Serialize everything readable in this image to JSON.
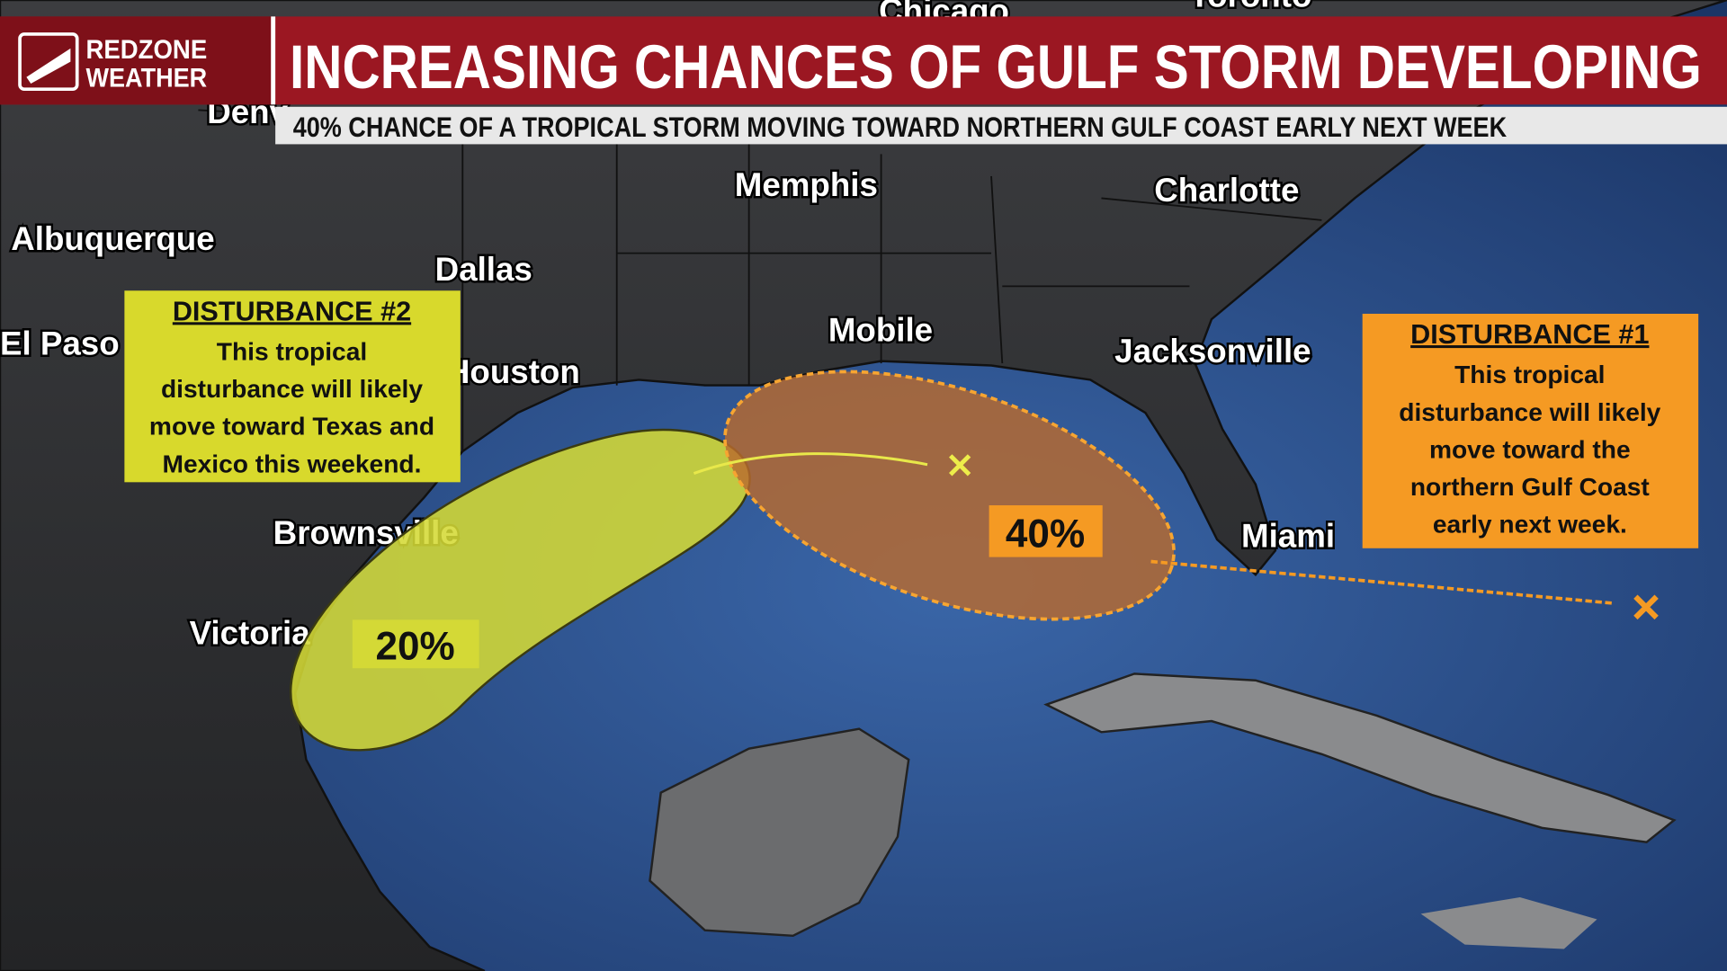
{
  "header": {
    "brand": [
      "REDZONE",
      "WEATHER"
    ],
    "title": "INCREASING CHANCES OF GULF STORM DEVELOPING",
    "subtitle": "40% CHANCE OF A TROPICAL STORM MOVING TOWARD NORTHERN GULF COAST EARLY NEXT WEEK"
  },
  "cities": [
    "Chicago",
    "Toronto",
    "Denv",
    "Memphis",
    "Charlotte",
    "Albuquerque",
    "Dallas",
    "El  Paso",
    "Houston",
    "Mobile",
    "Jacksonville",
    "Brownsville",
    "Miami",
    "Victoria"
  ],
  "disturbances": [
    {
      "title": "DISTURBANCE #1",
      "text": [
        "This tropical",
        "disturbance will likely",
        "move toward the",
        "northern Gulf Coast",
        "early next week."
      ],
      "chance": "40%"
    },
    {
      "title": "DISTURBANCE #2",
      "text": [
        "This tropical",
        "disturbance will likely",
        "move toward Texas and",
        "Mexico this weekend."
      ],
      "chance": "20%"
    }
  ]
}
